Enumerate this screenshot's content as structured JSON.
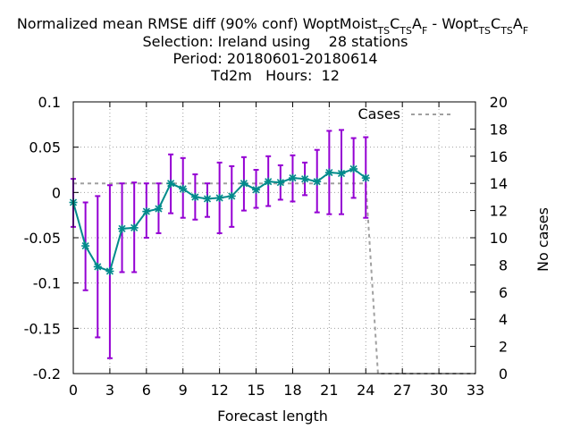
{
  "chart_data": {
    "type": "line",
    "title": {
      "line1_prefix": "Normalized mean RMSE diff (90% conf) WoptMoist",
      "line1_exp1_parts": [
        "TS",
        "C",
        "TS",
        "A",
        "F"
      ],
      "line1_separator": " - Wopt",
      "line1_exp2_parts": [
        "TS",
        "C",
        "TS",
        "A",
        "F"
      ],
      "line2": "Selection: Ireland using    28 stations",
      "line3": "Period: 20180601-20180614",
      "line4": "Td2m   Hours:  12"
    },
    "xlabel": "Forecast length",
    "ylabel": "",
    "y2label": "No cases",
    "xlim": [
      0,
      33
    ],
    "ylim": [
      -0.2,
      0.1
    ],
    "y2lim": [
      0,
      20
    ],
    "xticks": [
      "0",
      "3",
      "6",
      "9",
      "12",
      "15",
      "18",
      "21",
      "24",
      "27",
      "30",
      "33"
    ],
    "yticks": [
      "0.1",
      "0.05",
      "0",
      "-0.05",
      "-0.1",
      "-0.15",
      "-0.2"
    ],
    "y2ticks": [
      "20",
      "18",
      "16",
      "14",
      "12",
      "10",
      "8",
      "6",
      "4",
      "2",
      "0"
    ],
    "grid": true,
    "legend_position": "top-right",
    "colors": {
      "series": "#008b8b",
      "errorbar": "#9400d3",
      "cases": "#a0a0a0"
    },
    "x": [
      0,
      1,
      2,
      3,
      4,
      5,
      6,
      7,
      8,
      9,
      10,
      11,
      12,
      13,
      14,
      15,
      16,
      17,
      18,
      19,
      20,
      21,
      22,
      23,
      24
    ],
    "series": [
      {
        "values": [
          -0.011,
          -0.059,
          -0.082,
          -0.087,
          -0.04,
          -0.039,
          -0.021,
          -0.018,
          0.01,
          0.004,
          -0.005,
          -0.007,
          -0.006,
          -0.004,
          0.01,
          0.003,
          0.012,
          0.011,
          0.016,
          0.015,
          0.012,
          0.022,
          0.021,
          0.026,
          0.016
        ],
        "lower": [
          -0.038,
          -0.108,
          -0.16,
          -0.183,
          -0.088,
          -0.088,
          -0.05,
          -0.045,
          -0.023,
          -0.028,
          -0.03,
          -0.027,
          -0.045,
          -0.038,
          -0.02,
          -0.017,
          -0.015,
          -0.008,
          -0.01,
          -0.003,
          -0.022,
          -0.024,
          -0.024,
          -0.006,
          -0.028
        ],
        "upper": [
          0.015,
          -0.011,
          -0.004,
          0.008,
          0.01,
          0.011,
          0.01,
          0.01,
          0.042,
          0.038,
          0.02,
          0.01,
          0.033,
          0.029,
          0.039,
          0.025,
          0.04,
          0.03,
          0.041,
          0.033,
          0.047,
          0.068,
          0.069,
          0.06,
          0.061
        ]
      },
      {
        "name": "Cases",
        "axis": "right",
        "x": [
          0,
          24,
          25,
          33
        ],
        "values": [
          14,
          14,
          0,
          0
        ]
      }
    ]
  }
}
